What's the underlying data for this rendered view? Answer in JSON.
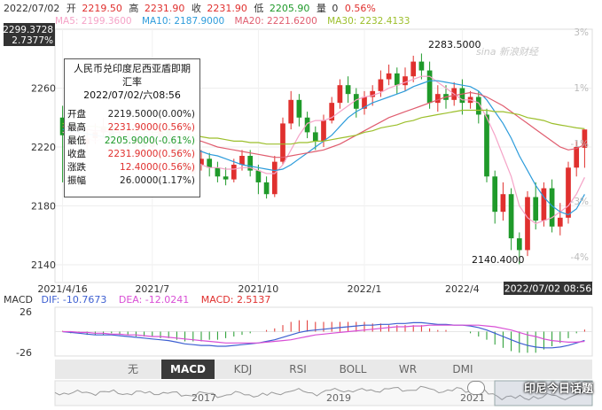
{
  "header": {
    "date": "2022/07/02",
    "open_label": "开",
    "open": "2219.50",
    "high_label": "高",
    "high": "2231.90",
    "close_label": "收",
    "close": "2231.90",
    "low_label": "低",
    "low": "2205.90",
    "vol_label": "量",
    "vol": "0",
    "change_pct": "0.56%"
  },
  "ma_legend": [
    {
      "label": "MA5: 2199.3600",
      "color": "#f5a3c7"
    },
    {
      "label": "MA10: 2187.9000",
      "color": "#2d9cdb"
    },
    {
      "label": "MA20: 2221.6200",
      "color": "#e05d6f"
    },
    {
      "label": "MA30: 2232.4133",
      "color": "#9cbf2b"
    }
  ],
  "price_badge": {
    "value": "2299.3728",
    "pct": "2.7377%"
  },
  "right_pct_labels": [
    "3%",
    "1%",
    "-1%",
    "-3%",
    "-4%"
  ],
  "hl_labels": {
    "high": "2283.5000",
    "low": "2140.4000"
  },
  "date_badge": "2022/07/02 08:56",
  "tooltip": {
    "title_line1": "人民币兑印度尼西亚盾即期",
    "title_line2": "汇率",
    "datetime": "2022/07/02/六08:56",
    "rows": [
      {
        "label": "开盘",
        "value": "2219.5000(0.00%)",
        "color": "#222222"
      },
      {
        "label": "最高",
        "value": "2231.9000(0.56%)",
        "color": "#e0302e"
      },
      {
        "label": "最低",
        "value": "2205.9000(-0.61%)",
        "color": "#1f9a2a"
      },
      {
        "label": "收盘",
        "value": "2231.9000(0.56%)",
        "color": "#e0302e"
      },
      {
        "label": "涨跌",
        "value": "12.4000(0.56%)",
        "color": "#e0302e"
      },
      {
        "label": "振幅",
        "value": "26.0000(1.17%)",
        "color": "#222222"
      }
    ]
  },
  "macd_legend": {
    "name": "MACD",
    "dif": "DIF: -10.7673",
    "dif_color": "#3d5fd1",
    "dea": "DEA: -12.0241",
    "dea_color": "#d94fd5",
    "macd": "MACD: 2.5137",
    "macd_color": "#e0302e"
  },
  "macd_axis": {
    "top": "26",
    "bottom": "-26"
  },
  "tabs": [
    {
      "label": "无",
      "active": false
    },
    {
      "label": "MACD",
      "active": true
    },
    {
      "label": "KDJ",
      "active": false
    },
    {
      "label": "RSI",
      "active": false
    },
    {
      "label": "BOLL",
      "active": false
    },
    {
      "label": "WR",
      "active": false
    },
    {
      "label": "DMI",
      "active": false
    }
  ],
  "nav_buttons": {
    "left": "▲",
    "right": "▼"
  },
  "overview_years": [
    "2017",
    "2019",
    "2021"
  ],
  "watermark": "印尼今日话题",
  "sina_logo": "sina 新浪财经",
  "chart_data": {
    "type": "candlestick",
    "title": "人民币兑印度尼西亚盾即期汇率",
    "y_ticks": [
      2140,
      2180,
      2220,
      2260
    ],
    "ylim": [
      2128,
      2300
    ],
    "x_ticks": [
      {
        "label": "2021/4/16",
        "index": 0
      },
      {
        "label": "2021/7",
        "index": 11
      },
      {
        "label": "2021/10",
        "index": 24
      },
      {
        "label": "2022/1",
        "index": 37
      },
      {
        "label": "2022/4",
        "index": 49
      }
    ],
    "candles": [
      [
        2240,
        2228,
        2248,
        2196
      ],
      [
        2228,
        2226,
        2236,
        2218
      ],
      [
        2226,
        2222,
        2230,
        2214
      ],
      [
        2222,
        2226,
        2232,
        2218
      ],
      [
        2226,
        2230,
        2236,
        2222
      ],
      [
        2230,
        2234,
        2240,
        2226
      ],
      [
        2234,
        2224,
        2238,
        2220
      ],
      [
        2224,
        2228,
        2232,
        2218
      ],
      [
        2228,
        2222,
        2232,
        2216
      ],
      [
        2222,
        2226,
        2230,
        2218
      ],
      [
        2226,
        2220,
        2230,
        2212
      ],
      [
        2220,
        2226,
        2236,
        2216
      ],
      [
        2226,
        2232,
        2240,
        2222
      ],
      [
        2232,
        2222,
        2236,
        2208
      ],
      [
        2222,
        2210,
        2226,
        2204
      ],
      [
        2210,
        2202,
        2214,
        2196
      ],
      [
        2202,
        2208,
        2214,
        2198
      ],
      [
        2208,
        2212,
        2218,
        2204
      ],
      [
        2212,
        2206,
        2216,
        2200
      ],
      [
        2206,
        2200,
        2210,
        2196
      ],
      [
        2200,
        2198,
        2206,
        2194
      ],
      [
        2198,
        2208,
        2212,
        2196
      ],
      [
        2208,
        2214,
        2218,
        2204
      ],
      [
        2214,
        2204,
        2218,
        2200
      ],
      [
        2204,
        2196,
        2208,
        2188
      ],
      [
        2196,
        2188,
        2200,
        2185
      ],
      [
        2188,
        2210,
        2214,
        2186
      ],
      [
        2210,
        2236,
        2240,
        2208
      ],
      [
        2236,
        2252,
        2258,
        2232
      ],
      [
        2252,
        2240,
        2256,
        2234
      ],
      [
        2240,
        2230,
        2244,
        2226
      ],
      [
        2230,
        2224,
        2234,
        2218
      ],
      [
        2224,
        2238,
        2242,
        2220
      ],
      [
        2238,
        2250,
        2254,
        2236
      ],
      [
        2250,
        2262,
        2266,
        2246
      ],
      [
        2262,
        2256,
        2268,
        2250
      ],
      [
        2256,
        2246,
        2260,
        2240
      ],
      [
        2246,
        2254,
        2258,
        2242
      ],
      [
        2254,
        2258,
        2262,
        2248
      ],
      [
        2258,
        2266,
        2272,
        2254
      ],
      [
        2266,
        2270,
        2276,
        2262
      ],
      [
        2270,
        2262,
        2274,
        2256
      ],
      [
        2262,
        2268,
        2274,
        2258
      ],
      [
        2268,
        2278,
        2282,
        2264
      ],
      [
        2278,
        2272,
        2283.5,
        2266
      ],
      [
        2272,
        2250,
        2278,
        2246
      ],
      [
        2250,
        2256,
        2262,
        2244
      ],
      [
        2256,
        2252,
        2262,
        2246
      ],
      [
        2252,
        2260,
        2264,
        2248
      ],
      [
        2260,
        2250,
        2266,
        2242
      ],
      [
        2250,
        2254,
        2258,
        2246
      ],
      [
        2254,
        2242,
        2258,
        2236
      ],
      [
        2242,
        2200,
        2246,
        2196
      ],
      [
        2200,
        2176,
        2204,
        2168
      ],
      [
        2176,
        2188,
        2196,
        2170
      ],
      [
        2188,
        2158,
        2192,
        2150
      ],
      [
        2158,
        2150,
        2162,
        2140.4
      ],
      [
        2150,
        2186,
        2190,
        2146
      ],
      [
        2186,
        2170,
        2196,
        2164
      ],
      [
        2170,
        2192,
        2196,
        2166
      ],
      [
        2192,
        2166,
        2198,
        2162
      ],
      [
        2166,
        2172,
        2182,
        2160
      ],
      [
        2172,
        2206,
        2210,
        2168
      ],
      [
        2206,
        2220,
        2224,
        2200
      ],
      [
        2219.5,
        2231.9,
        2231.9,
        2205.9
      ]
    ],
    "ma_series": [
      {
        "name": "MA5",
        "color": "#f5a3c7",
        "values": [
          2230,
          2229,
          2228,
          2226,
          2224,
          2226,
          2226,
          2226,
          2226,
          2226,
          2224,
          2224,
          2225,
          2226,
          2223,
          2218,
          2212,
          2208,
          2206,
          2206,
          2205,
          2205,
          2206,
          2206,
          2204,
          2202,
          2202,
          2208,
          2218,
          2228,
          2236,
          2238,
          2238,
          2240,
          2244,
          2248,
          2252,
          2254,
          2255,
          2257,
          2260,
          2262,
          2264,
          2266,
          2268,
          2268,
          2264,
          2260,
          2256,
          2252,
          2252,
          2250,
          2240,
          2228,
          2214,
          2200,
          2180,
          2172,
          2168,
          2170,
          2172,
          2176,
          2180,
          2188,
          2199.36
        ]
      },
      {
        "name": "MA10",
        "color": "#2d9cdb",
        "values": [
          2232,
          2231,
          2230,
          2229,
          2228,
          2227,
          2226,
          2226,
          2226,
          2226,
          2226,
          2226,
          2226,
          2226,
          2225,
          2222,
          2219,
          2217,
          2215,
          2214,
          2212,
          2210,
          2208,
          2207,
          2206,
          2205,
          2204,
          2205,
          2208,
          2212,
          2216,
          2220,
          2224,
          2228,
          2234,
          2240,
          2244,
          2247,
          2250,
          2252,
          2254,
          2256,
          2258,
          2261,
          2263,
          2265,
          2265,
          2264,
          2263,
          2262,
          2261,
          2258,
          2252,
          2244,
          2236,
          2226,
          2214,
          2204,
          2194,
          2186,
          2180,
          2176,
          2174,
          2178,
          2187.9
        ]
      },
      {
        "name": "MA20",
        "color": "#e05d6f",
        "values": [
          2234,
          2233,
          2232,
          2232,
          2231,
          2231,
          2230,
          2230,
          2229,
          2229,
          2228,
          2228,
          2228,
          2227,
          2227,
          2226,
          2225,
          2224,
          2222,
          2220,
          2219,
          2218,
          2217,
          2216,
          2215,
          2214,
          2213,
          2213,
          2214,
          2215,
          2216,
          2217,
          2218,
          2220,
          2222,
          2225,
          2228,
          2231,
          2234,
          2237,
          2240,
          2242,
          2244,
          2246,
          2248,
          2250,
          2252,
          2254,
          2255,
          2256,
          2257,
          2256,
          2254,
          2251,
          2248,
          2244,
          2240,
          2236,
          2232,
          2228,
          2224,
          2220,
          2218,
          2219,
          2221.62
        ]
      },
      {
        "name": "MA30",
        "color": "#9cbf2b",
        "values": [
          2236,
          2235,
          2235,
          2234,
          2234,
          2233,
          2233,
          2232,
          2232,
          2231,
          2231,
          2230,
          2230,
          2229,
          2229,
          2228,
          2228,
          2227,
          2226,
          2226,
          2225,
          2224,
          2224,
          2223,
          2223,
          2222,
          2222,
          2222,
          2222,
          2223,
          2223,
          2224,
          2224,
          2225,
          2226,
          2227,
          2228,
          2230,
          2231,
          2233,
          2234,
          2235,
          2237,
          2238,
          2240,
          2241,
          2242,
          2243,
          2244,
          2245,
          2245,
          2245,
          2245,
          2244,
          2244,
          2243,
          2242,
          2240,
          2239,
          2238,
          2236,
          2235,
          2234,
          2233,
          2232.41
        ]
      }
    ],
    "macd": {
      "ylim": [
        -30,
        30
      ],
      "dif": [
        0,
        -1,
        -2,
        -3,
        -4,
        -4,
        -4,
        -5,
        -6,
        -7,
        -8,
        -9,
        -10,
        -11,
        -13,
        -15,
        -16,
        -17,
        -17,
        -18,
        -18,
        -17,
        -16,
        -15,
        -14,
        -12,
        -10,
        -7,
        -4,
        -1,
        1,
        2,
        3,
        4,
        5,
        6,
        7,
        8,
        8,
        9,
        9,
        10,
        10,
        11,
        11,
        10,
        9,
        9,
        8,
        8,
        7,
        5,
        2,
        -2,
        -6,
        -10,
        -14,
        -17,
        -19,
        -20,
        -20,
        -19,
        -17,
        -14,
        -10.77
      ],
      "dea": [
        0,
        0,
        -1,
        -1,
        -2,
        -2,
        -3,
        -3,
        -4,
        -4,
        -5,
        -6,
        -6,
        -7,
        -8,
        -9,
        -10,
        -11,
        -12,
        -13,
        -14,
        -14,
        -14,
        -14,
        -14,
        -13,
        -12,
        -11,
        -10,
        -8,
        -6,
        -4,
        -3,
        -2,
        -1,
        0,
        1,
        2,
        3,
        4,
        5,
        6,
        6,
        7,
        7,
        8,
        8,
        8,
        8,
        8,
        8,
        8,
        7,
        6,
        4,
        2,
        -1,
        -4,
        -6,
        -9,
        -11,
        -12,
        -13,
        -13,
        -12.02
      ],
      "hist": [
        1,
        -2,
        -2,
        -4,
        -4,
        -4,
        -2,
        -4,
        -4,
        -6,
        -6,
        -6,
        -8,
        -8,
        -10,
        -12,
        -12,
        -12,
        -10,
        -10,
        -8,
        -6,
        -4,
        -2,
        0,
        2,
        4,
        8,
        12,
        14,
        14,
        12,
        12,
        12,
        12,
        12,
        12,
        12,
        10,
        10,
        8,
        8,
        8,
        8,
        8,
        4,
        2,
        2,
        0,
        0,
        -2,
        -6,
        -10,
        -16,
        -20,
        -24,
        -26,
        -26,
        -26,
        -22,
        -18,
        -14,
        -8,
        -2,
        2.51
      ]
    }
  }
}
